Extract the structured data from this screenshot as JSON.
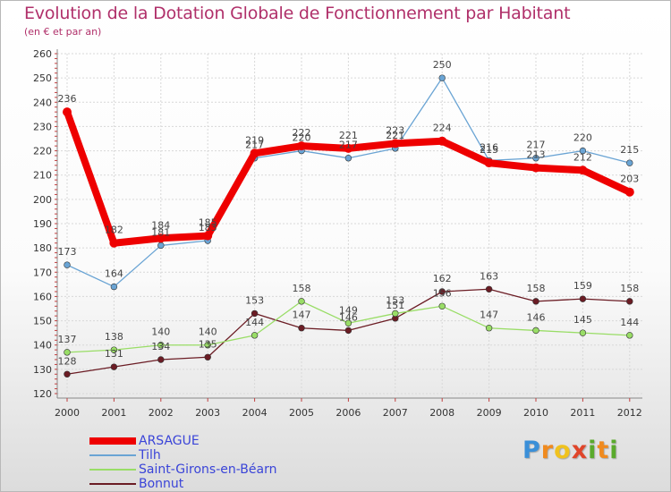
{
  "chart_data": {
    "type": "line",
    "title": "Evolution de la Dotation Globale de Fonctionnement par Habitant",
    "subtitle": "(en € et par an)",
    "xlabel": "",
    "ylabel": "",
    "x": [
      "2000",
      "2001",
      "2002",
      "2003",
      "2004",
      "2005",
      "2006",
      "2007",
      "2008",
      "2009",
      "2010",
      "2011",
      "2012"
    ],
    "ylim": [
      120,
      260
    ],
    "yticks": [
      120,
      130,
      140,
      150,
      160,
      170,
      180,
      190,
      200,
      210,
      220,
      230,
      240,
      250,
      260
    ],
    "grid": true,
    "legend_position": "bottom-left",
    "series": [
      {
        "name": "Bonnut",
        "color": "#6b1c24",
        "values": [
          128,
          131,
          134,
          135,
          153,
          147,
          146,
          151,
          162,
          163,
          158,
          159,
          158
        ]
      },
      {
        "name": "Saint-Girons-en-Béarn",
        "color": "#99dd66",
        "values": [
          137,
          138,
          140,
          140,
          144,
          158,
          149,
          153,
          156,
          147,
          146,
          145,
          144
        ]
      },
      {
        "name": "Tilh",
        "color": "#6aa4d4",
        "values": [
          173,
          164,
          181,
          183,
          217,
          220,
          217,
          221,
          250,
          216,
          217,
          220,
          215
        ]
      },
      {
        "name": "ARSAGUE",
        "color": "#ee0000",
        "values": [
          236,
          182,
          184,
          185,
          219,
          222,
          221,
          223,
          224,
          215,
          213,
          212,
          203
        ]
      }
    ],
    "legend_order": [
      "ARSAGUE",
      "Tilh",
      "Saint-Girons-en-Béarn",
      "Bonnut"
    ]
  },
  "logo": {
    "letters": [
      "P",
      "r",
      "o",
      "x",
      "i",
      "t",
      "i"
    ]
  }
}
